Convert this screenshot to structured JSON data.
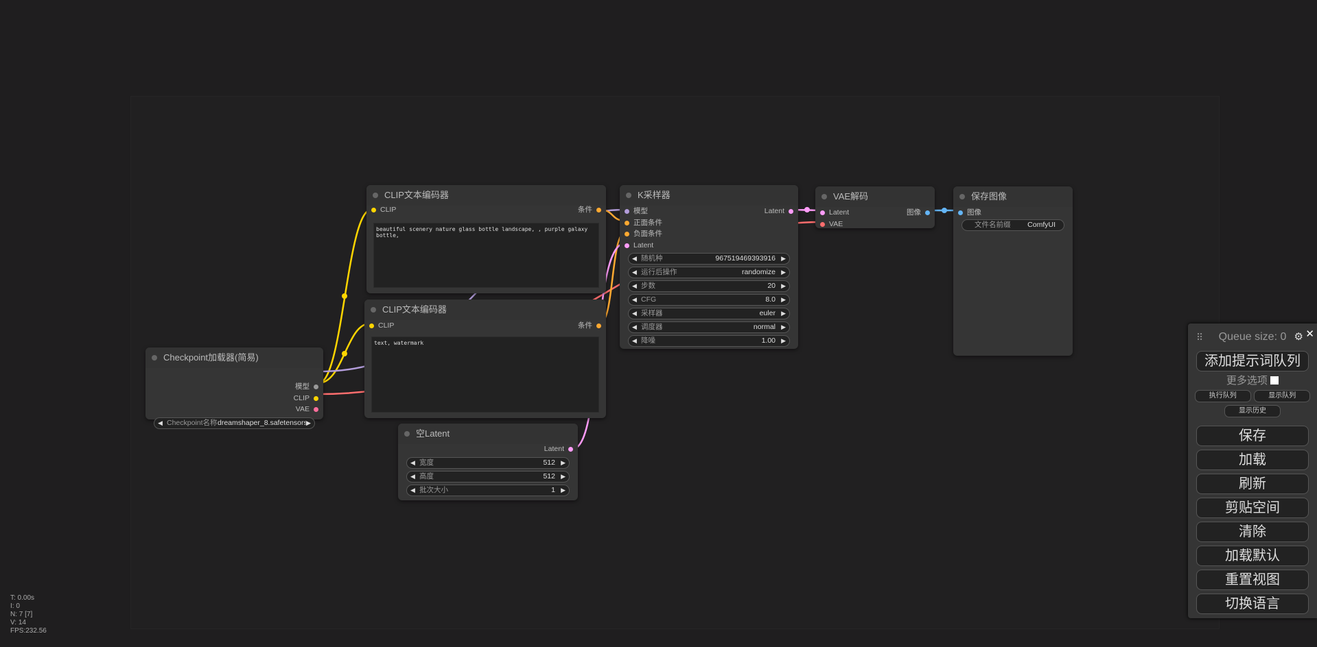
{
  "nodes": {
    "checkpoint": {
      "title": "Checkpoint加载器(简易)",
      "outputs": [
        "模型",
        "CLIP",
        "VAE"
      ],
      "widget": {
        "label": "Checkpoint名称",
        "value": "dreamshaper_8.safetensors"
      }
    },
    "clip_pos": {
      "title": "CLIP文本编码器",
      "input": "CLIP",
      "output": "条件",
      "text": "beautiful scenery nature glass bottle landscape, , purple galaxy bottle,"
    },
    "clip_neg": {
      "title": "CLIP文本编码器",
      "input": "CLIP",
      "output": "条件",
      "text": "text, watermark"
    },
    "ksampler": {
      "title": "K采样器",
      "inputs": [
        "模型",
        "正面条件",
        "负面条件",
        "Latent"
      ],
      "output": "Latent",
      "widgets": [
        {
          "label": "随机种",
          "value": "967519469393916"
        },
        {
          "label": "运行后操作",
          "value": "randomize"
        },
        {
          "label": "步数",
          "value": "20"
        },
        {
          "label": "CFG",
          "value": "8.0"
        },
        {
          "label": "采样器",
          "value": "euler"
        },
        {
          "label": "调度器",
          "value": "normal"
        },
        {
          "label": "降噪",
          "value": "1.00"
        }
      ]
    },
    "vae_decode": {
      "title": "VAE解码",
      "inputs": [
        "Latent",
        "VAE"
      ],
      "output": "图像"
    },
    "save_image": {
      "title": "保存图像",
      "input": "图像",
      "widget": {
        "label": "文件名前缀",
        "value": "ComfyUI"
      }
    },
    "empty_latent": {
      "title": "空Latent",
      "output": "Latent",
      "widgets": [
        {
          "label": "宽度",
          "value": "512"
        },
        {
          "label": "高度",
          "value": "512"
        },
        {
          "label": "批次大小",
          "value": "1"
        }
      ]
    }
  },
  "colors": {
    "clip": "#ffd500",
    "conditioning": "#ffa931",
    "model": "#b39ddb",
    "vae": "#ff6e6e",
    "latent": "#ff9cf9",
    "image": "#64b5f6"
  },
  "queue": {
    "title": "Queue size: 0",
    "queue_prompt": "添加提示词队列",
    "extra_options": "更多选项",
    "queue_front": "执行队列",
    "view_queue": "显示队列",
    "view_history": "显示历史",
    "buttons": [
      "保存",
      "加载",
      "刷新",
      "剪贴空间",
      "清除",
      "加载默认",
      "重置视图",
      "切换语言"
    ]
  },
  "stats": [
    "T: 0.00s",
    "I: 0",
    "N: 7 [7]",
    "V: 14",
    "FPS:232.56"
  ]
}
